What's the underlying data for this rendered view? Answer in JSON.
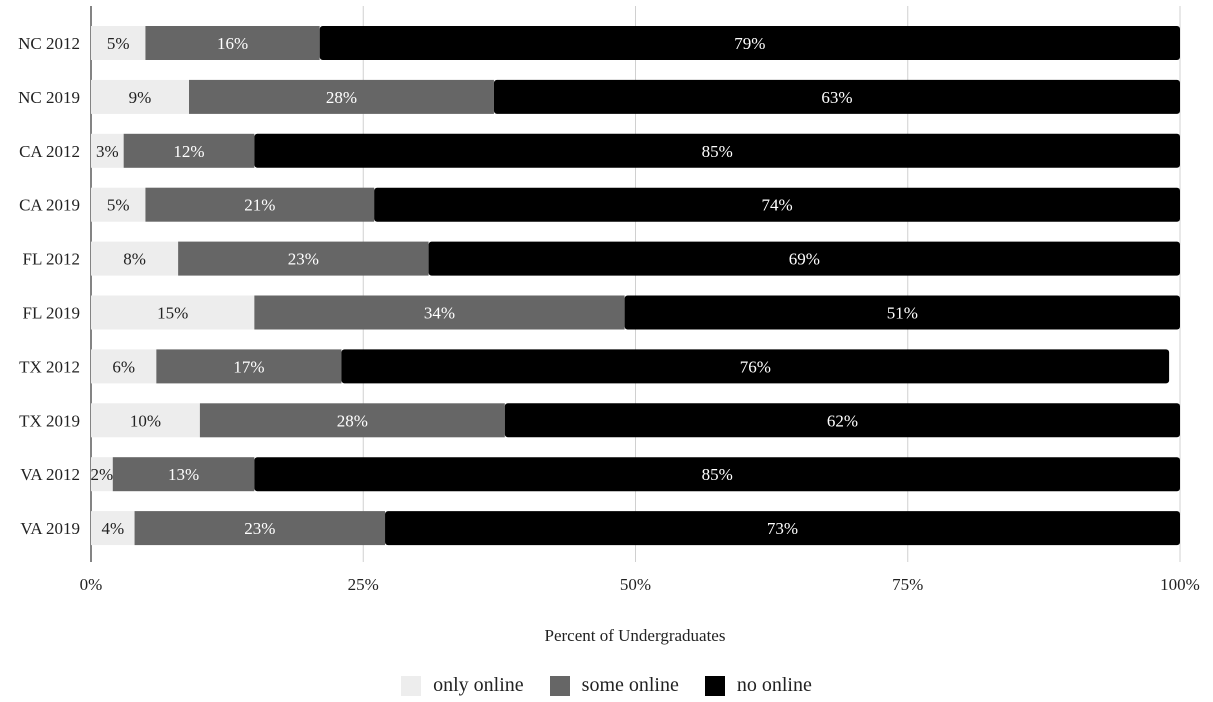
{
  "chart_data": {
    "type": "bar",
    "orientation": "horizontal",
    "stacked": "percent",
    "categories": [
      "NC 2012",
      "NC 2019",
      "CA 2012",
      "CA 2019",
      "FL 2012",
      "FL 2019",
      "TX 2012",
      "TX 2019",
      "VA 2012",
      "VA 2019"
    ],
    "series": [
      {
        "name": "only online",
        "color": "#ededed",
        "label_color": "#222222",
        "values": [
          5,
          9,
          3,
          5,
          8,
          15,
          6,
          10,
          2,
          4
        ]
      },
      {
        "name": "some online",
        "color": "#666666",
        "label_color": "#ffffff",
        "values": [
          16,
          28,
          12,
          21,
          23,
          34,
          17,
          28,
          13,
          23
        ]
      },
      {
        "name": "no online",
        "color": "#000000",
        "label_color": "#ffffff",
        "values": [
          79,
          63,
          85,
          74,
          69,
          51,
          76,
          62,
          85,
          73
        ]
      }
    ],
    "xlabel": "Percent of Undergraduates",
    "ylabel": "",
    "xlim": [
      0,
      100
    ],
    "xticks": [
      "0%",
      "25%",
      "50%",
      "75%",
      "100%"
    ],
    "grid": true,
    "legend_position": "bottom"
  }
}
